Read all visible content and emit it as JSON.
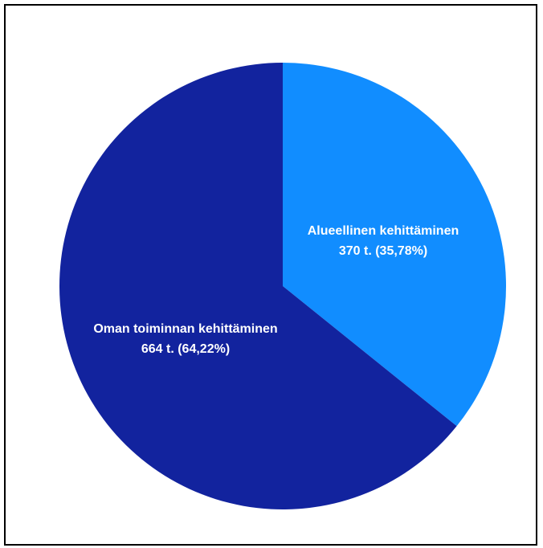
{
  "chart_data": {
    "type": "pie",
    "title": "",
    "unit": "t.",
    "slices": [
      {
        "name": "Alueellinen kehittäminen",
        "value": 370,
        "percent_label": "35,78%",
        "value_label": "370 t. (35,78%)",
        "color": "#118DFF"
      },
      {
        "name": "Oman toiminnan kehittäminen",
        "value": 664,
        "percent_label": "64,22%",
        "value_label": "664 t. (64,22%)",
        "color": "#12239E"
      }
    ],
    "start_angle_deg": 0,
    "direction": "clockwise",
    "legend": "none"
  },
  "colors": {
    "border": "#000000",
    "background": "#FFFFFF",
    "label_text": "#FFFFFF"
  }
}
